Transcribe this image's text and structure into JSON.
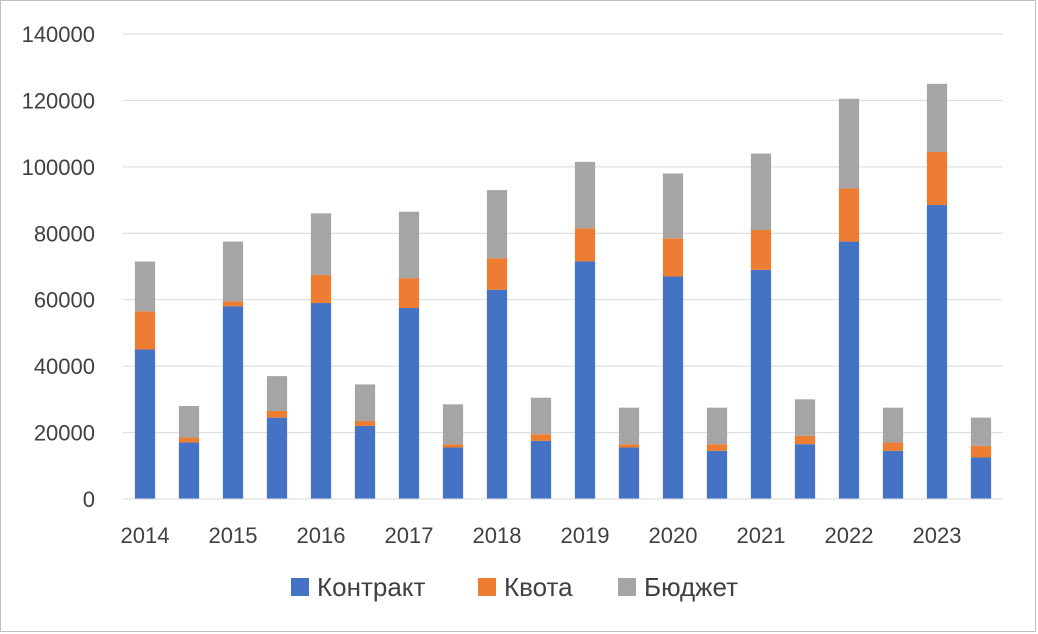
{
  "chart_data": {
    "type": "bar",
    "stacked": true,
    "title": "",
    "xlabel": "",
    "ylabel": "",
    "ylim": [
      0,
      140000
    ],
    "yticks": [
      0,
      20000,
      40000,
      60000,
      80000,
      100000,
      120000,
      140000
    ],
    "grid": true,
    "legend_position": "bottom",
    "x_tick_labels": [
      "2014",
      "2015",
      "2016",
      "2017",
      "2018",
      "2019",
      "2020",
      "2021",
      "2022",
      "2023"
    ],
    "bar_count": 20,
    "series": [
      {
        "name": "Контракт",
        "color": "#4472c4",
        "values": [
          45000,
          17000,
          58000,
          24500,
          59000,
          22000,
          57500,
          15500,
          63000,
          17500,
          71500,
          15500,
          67000,
          14500,
          69000,
          16500,
          77500,
          14500,
          88500,
          12500
        ]
      },
      {
        "name": "Квота",
        "color": "#ed7d31",
        "values": [
          11500,
          1500,
          1500,
          2000,
          8500,
          1500,
          9000,
          1000,
          9500,
          2000,
          10000,
          1000,
          11500,
          2000,
          12000,
          2500,
          16000,
          2500,
          16000,
          3500
        ]
      },
      {
        "name": "Бюджет",
        "color": "#a5a5a5",
        "values": [
          15000,
          9500,
          18000,
          10500,
          18500,
          11000,
          20000,
          12000,
          20500,
          11000,
          20000,
          11000,
          19500,
          11000,
          23000,
          11000,
          27000,
          10500,
          20500,
          8500
        ]
      }
    ]
  }
}
